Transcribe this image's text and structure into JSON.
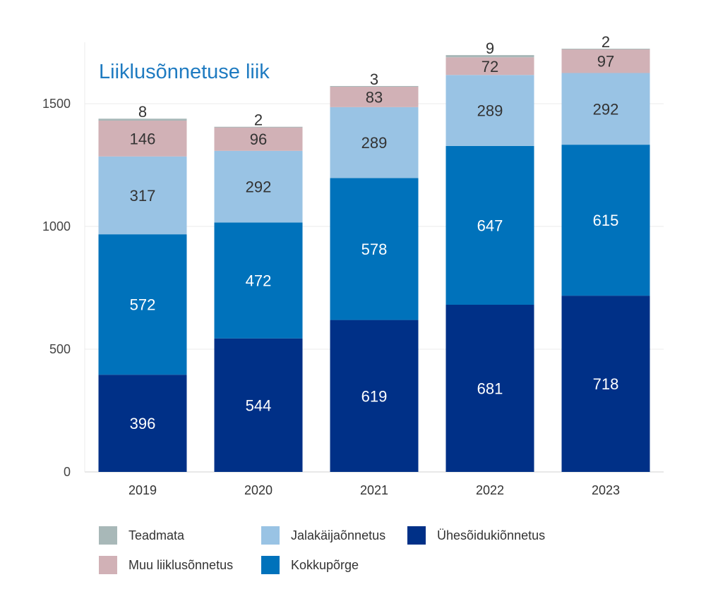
{
  "chart_data": {
    "type": "bar",
    "stacked": true,
    "title": "Liiklusõnnetuse liik",
    "categories": [
      "2019",
      "2020",
      "2021",
      "2022",
      "2023"
    ],
    "ylim": [
      0,
      1750
    ],
    "yticks": [
      0,
      500,
      1000,
      1500
    ],
    "grid": true,
    "legend_position": "bottom",
    "series": [
      {
        "name": "Ühesõidukiõnnetus",
        "color": "#003087",
        "label_color": "#ffffff",
        "values": [
          396,
          544,
          619,
          681,
          718
        ]
      },
      {
        "name": "Kokkupõrge",
        "color": "#0072bb",
        "label_color": "#ffffff",
        "values": [
          572,
          472,
          578,
          647,
          615
        ]
      },
      {
        "name": "Jalakäijaõnnetus",
        "color": "#99c3e4",
        "label_color": "#333333",
        "values": [
          317,
          292,
          289,
          289,
          292
        ]
      },
      {
        "name": "Muu liiklusõnnetus",
        "color": "#d1b1b6",
        "label_color": "#333333",
        "values": [
          146,
          96,
          83,
          72,
          97
        ]
      },
      {
        "name": "Teadmata",
        "color": "#a8b8b8",
        "label_color": "#333333",
        "values": [
          8,
          2,
          3,
          9,
          2
        ]
      }
    ],
    "legend_order": [
      "Teadmata",
      "Muu liiklusõnnetus",
      "Jalakäijaõnnetus",
      "Kokkupõrge",
      "Ühesõidukiõnnetus"
    ]
  }
}
